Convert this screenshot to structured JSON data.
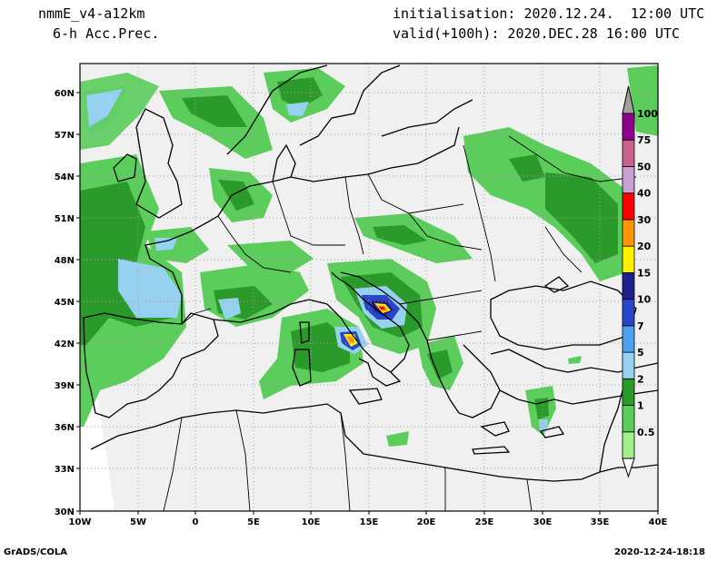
{
  "header": {
    "model": "nmmE_v4-a12km",
    "field": "6-h Acc.Prec.",
    "init": "initialisation: 2020.12.24.  12:00 UTC",
    "valid": "valid(+100h): 2020.DEC.28 16:00 UTC"
  },
  "footer": {
    "left": "GrADS/COLA",
    "right": "2020-12-24-18:18"
  },
  "axes": {
    "lat_labels": [
      "60N",
      "57N",
      "54N",
      "51N",
      "48N",
      "45N",
      "42N",
      "39N",
      "36N",
      "33N",
      "30N"
    ],
    "lon_labels": [
      "10W",
      "5W",
      "0",
      "5E",
      "10E",
      "15E",
      "20E",
      "25E",
      "30E",
      "35E",
      "40E"
    ]
  },
  "legend": {
    "labels": [
      "0.5",
      "1",
      "2",
      "5",
      "7",
      "10",
      "15",
      "20",
      "30",
      "40",
      "50",
      "75",
      "100"
    ],
    "colors": [
      "#a0f08c",
      "#5acd5a",
      "#2a9a2a",
      "#96d2f0",
      "#50a0f0",
      "#2a46c8",
      "#1e1e8c",
      "#fff000",
      "#ff9600",
      "#ff0000",
      "#c8a0d2",
      "#c8648c",
      "#8c008c"
    ]
  },
  "colors": {
    "land_bg": "#f0f0f0",
    "coast": "#000000",
    "grid": "#a0a0a0"
  }
}
